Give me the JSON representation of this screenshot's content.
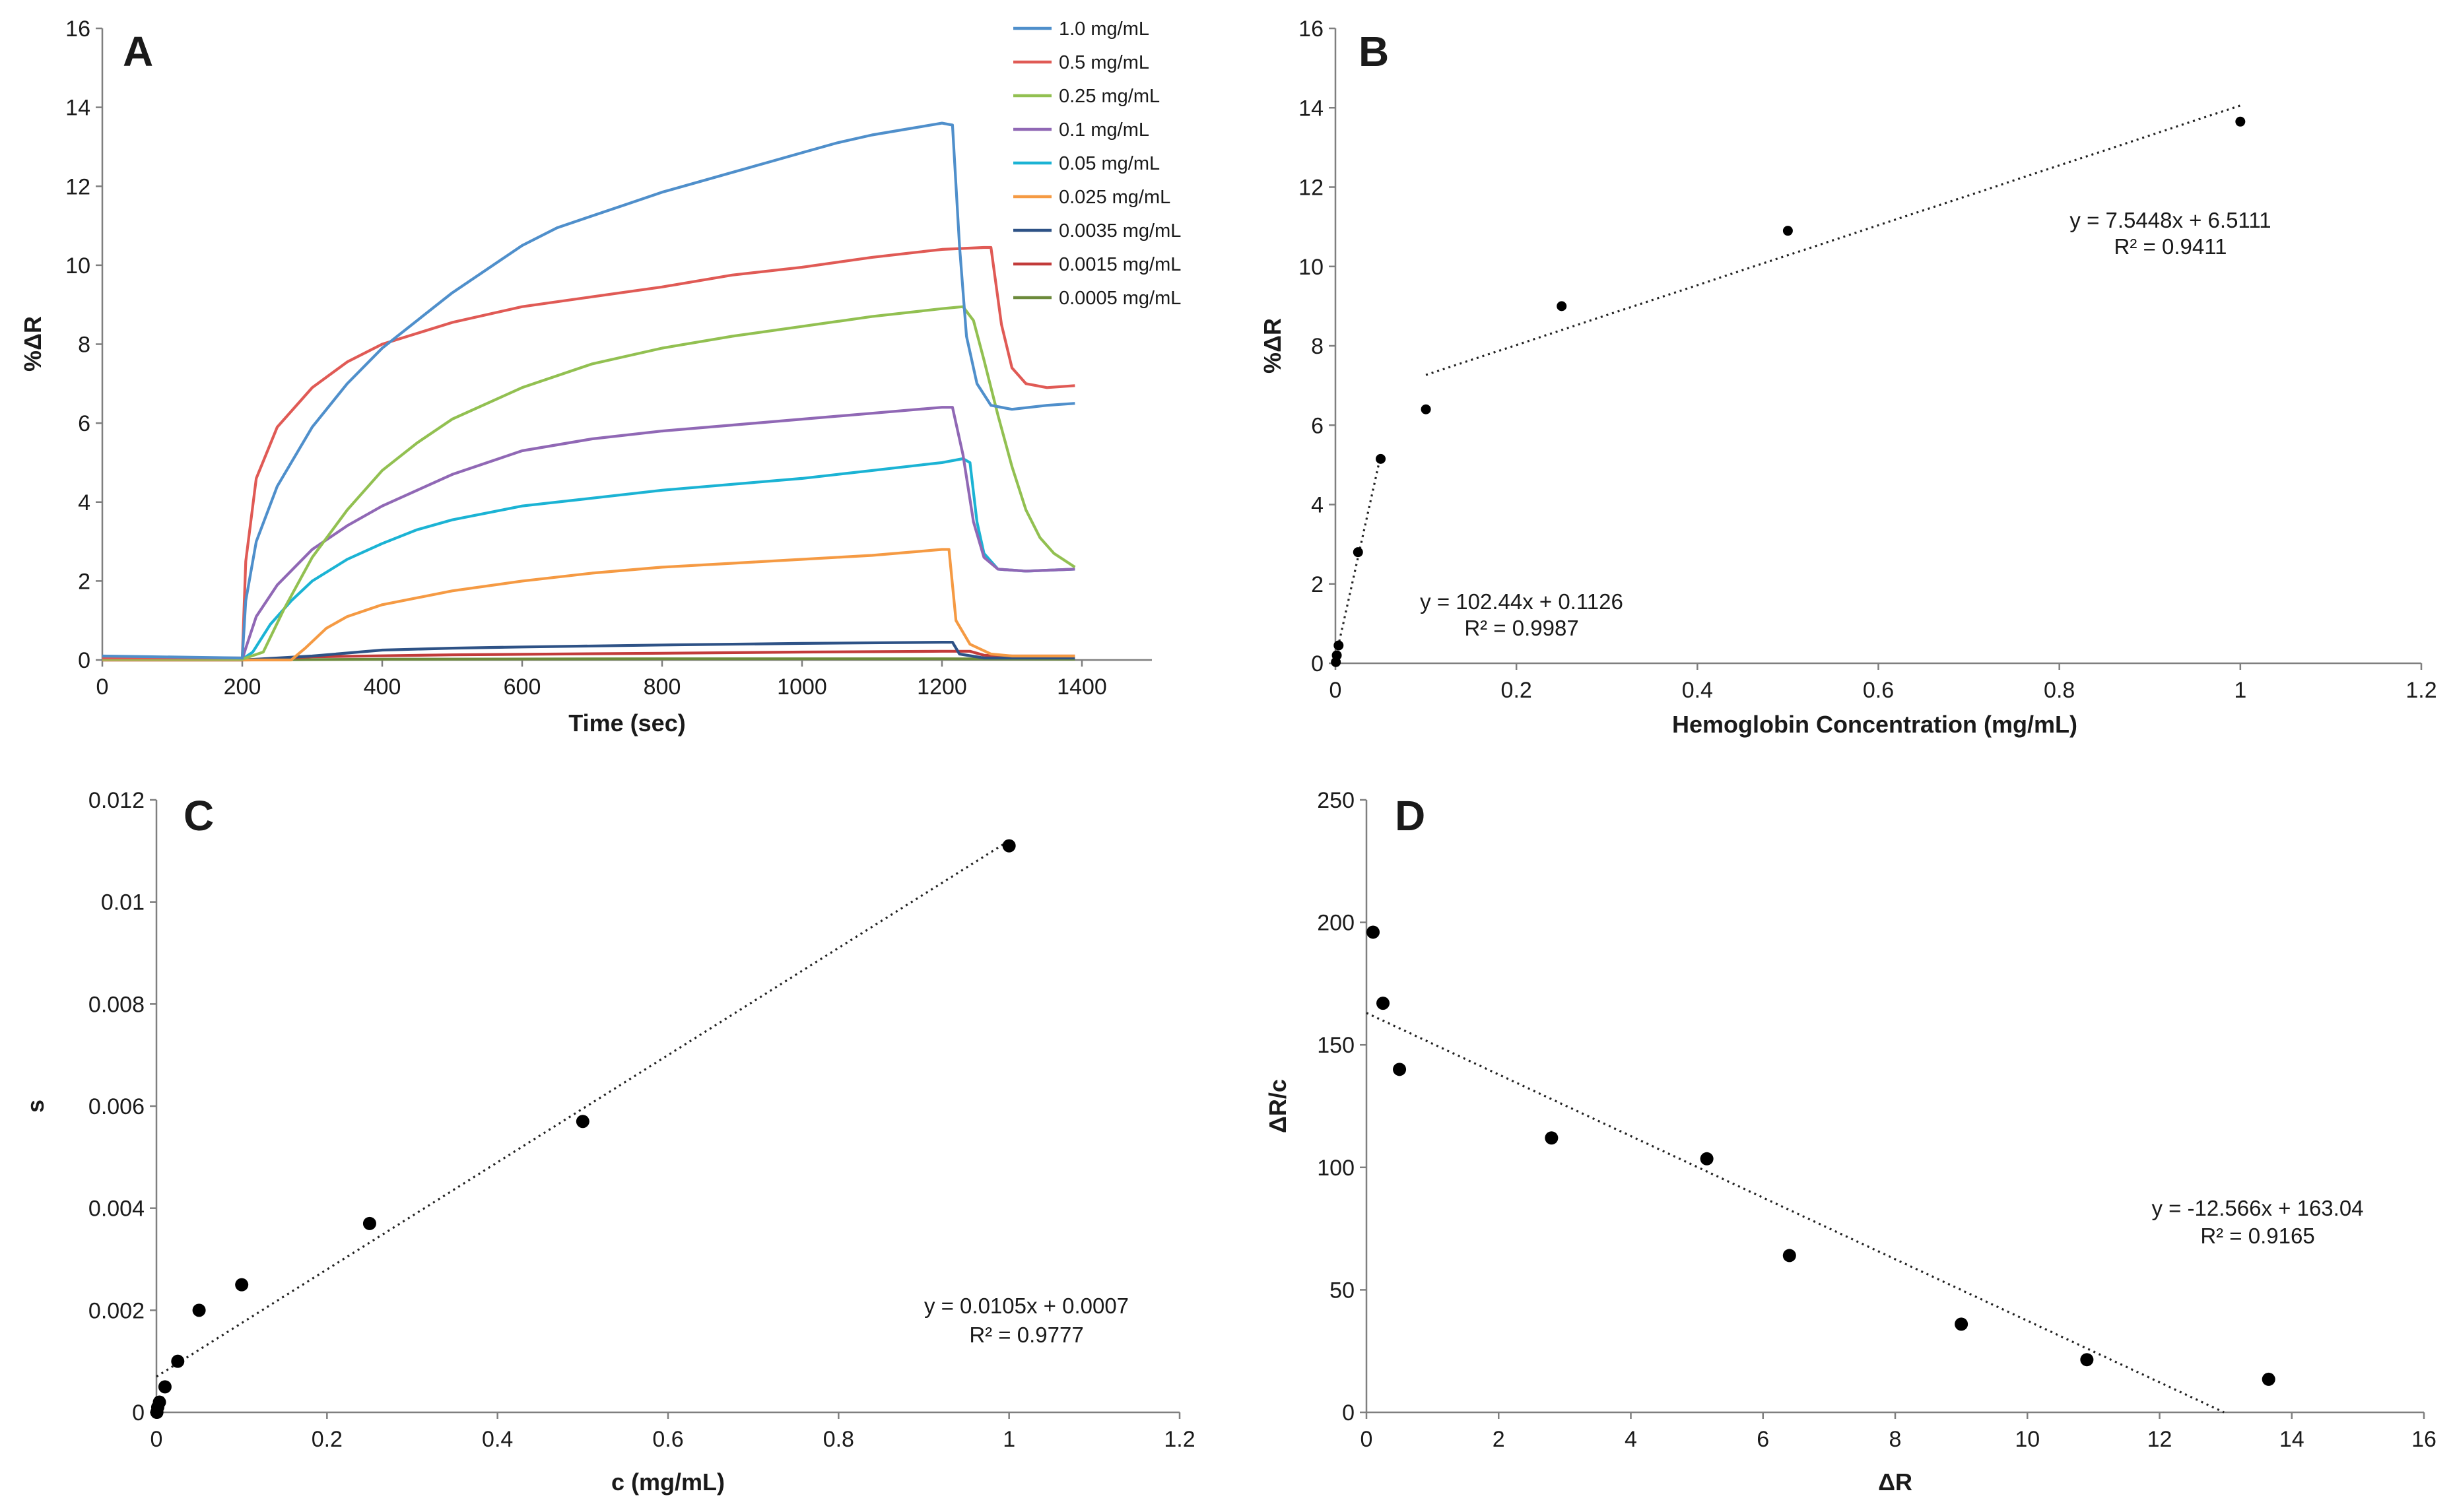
{
  "chart_data": [
    {
      "id": "A",
      "type": "line",
      "panel_letter": "A",
      "xlabel": "Time (sec)",
      "ylabel": "%ΔR",
      "xlim": [
        0,
        1500
      ],
      "ylim": [
        0,
        16
      ],
      "xticks": [
        0,
        200,
        400,
        600,
        800,
        1000,
        1200,
        1400
      ],
      "yticks": [
        0,
        2,
        4,
        6,
        8,
        10,
        12,
        14,
        16
      ],
      "legend_position": "top-right",
      "series": [
        {
          "name": "1.0 mg/mL",
          "color": "#4f8fcb",
          "points": [
            [
              0,
              0.1
            ],
            [
              200,
              0.05
            ],
            [
              205,
              1.5
            ],
            [
              220,
              3.0
            ],
            [
              250,
              4.4
            ],
            [
              300,
              5.9
            ],
            [
              350,
              7.0
            ],
            [
              400,
              7.9
            ],
            [
              450,
              8.6
            ],
            [
              500,
              9.3
            ],
            [
              550,
              9.9
            ],
            [
              600,
              10.5
            ],
            [
              650,
              10.95
            ],
            [
              700,
              11.25
            ],
            [
              750,
              11.55
            ],
            [
              800,
              11.85
            ],
            [
              850,
              12.1
            ],
            [
              900,
              12.35
            ],
            [
              950,
              12.6
            ],
            [
              1000,
              12.85
            ],
            [
              1050,
              13.1
            ],
            [
              1100,
              13.3
            ],
            [
              1150,
              13.45
            ],
            [
              1200,
              13.6
            ],
            [
              1215,
              13.55
            ],
            [
              1225,
              10.5
            ],
            [
              1235,
              8.2
            ],
            [
              1250,
              7.0
            ],
            [
              1270,
              6.45
            ],
            [
              1300,
              6.35
            ],
            [
              1350,
              6.45
            ],
            [
              1390,
              6.5
            ]
          ]
        },
        {
          "name": "0.5 mg/mL",
          "color": "#e05a55",
          "points": [
            [
              0,
              0.05
            ],
            [
              200,
              0.05
            ],
            [
              205,
              2.5
            ],
            [
              220,
              4.6
            ],
            [
              250,
              5.9
            ],
            [
              300,
              6.9
            ],
            [
              350,
              7.55
            ],
            [
              400,
              8.0
            ],
            [
              500,
              8.55
            ],
            [
              600,
              8.95
            ],
            [
              700,
              9.2
            ],
            [
              800,
              9.45
            ],
            [
              900,
              9.75
            ],
            [
              1000,
              9.95
            ],
            [
              1100,
              10.2
            ],
            [
              1200,
              10.4
            ],
            [
              1260,
              10.45
            ],
            [
              1270,
              10.45
            ],
            [
              1285,
              8.5
            ],
            [
              1300,
              7.4
            ],
            [
              1320,
              7.0
            ],
            [
              1350,
              6.9
            ],
            [
              1390,
              6.95
            ]
          ]
        },
        {
          "name": "0.25 mg/mL",
          "color": "#92c051",
          "points": [
            [
              0,
              0.02
            ],
            [
              200,
              0.02
            ],
            [
              230,
              0.2
            ],
            [
              260,
              1.3
            ],
            [
              300,
              2.6
            ],
            [
              350,
              3.8
            ],
            [
              400,
              4.8
            ],
            [
              450,
              5.5
            ],
            [
              500,
              6.1
            ],
            [
              600,
              6.9
            ],
            [
              700,
              7.5
            ],
            [
              800,
              7.9
            ],
            [
              900,
              8.2
            ],
            [
              1000,
              8.45
            ],
            [
              1100,
              8.7
            ],
            [
              1200,
              8.9
            ],
            [
              1230,
              8.95
            ],
            [
              1245,
              8.6
            ],
            [
              1260,
              7.6
            ],
            [
              1280,
              6.2
            ],
            [
              1300,
              4.9
            ],
            [
              1320,
              3.8
            ],
            [
              1340,
              3.1
            ],
            [
              1360,
              2.7
            ],
            [
              1390,
              2.35
            ]
          ]
        },
        {
          "name": "0.1 mg/mL",
          "color": "#9068b5",
          "points": [
            [
              0,
              0.02
            ],
            [
              200,
              0.02
            ],
            [
              205,
              0.3
            ],
            [
              220,
              1.1
            ],
            [
              250,
              1.9
            ],
            [
              300,
              2.8
            ],
            [
              350,
              3.4
            ],
            [
              400,
              3.9
            ],
            [
              450,
              4.3
            ],
            [
              500,
              4.7
            ],
            [
              600,
              5.3
            ],
            [
              700,
              5.6
            ],
            [
              800,
              5.8
            ],
            [
              900,
              5.95
            ],
            [
              1000,
              6.1
            ],
            [
              1100,
              6.25
            ],
            [
              1200,
              6.4
            ],
            [
              1215,
              6.4
            ],
            [
              1230,
              5.2
            ],
            [
              1245,
              3.5
            ],
            [
              1260,
              2.6
            ],
            [
              1280,
              2.3
            ],
            [
              1320,
              2.25
            ],
            [
              1390,
              2.3
            ]
          ]
        },
        {
          "name": "0.05 mg/mL",
          "color": "#1bb3d4",
          "points": [
            [
              0,
              0.02
            ],
            [
              200,
              0.02
            ],
            [
              215,
              0.2
            ],
            [
              240,
              0.9
            ],
            [
              270,
              1.5
            ],
            [
              300,
              2.0
            ],
            [
              350,
              2.55
            ],
            [
              400,
              2.95
            ],
            [
              450,
              3.3
            ],
            [
              500,
              3.55
            ],
            [
              600,
              3.9
            ],
            [
              700,
              4.1
            ],
            [
              800,
              4.3
            ],
            [
              900,
              4.45
            ],
            [
              1000,
              4.6
            ],
            [
              1100,
              4.8
            ],
            [
              1200,
              5.0
            ],
            [
              1230,
              5.1
            ],
            [
              1240,
              5.0
            ],
            [
              1250,
              3.5
            ],
            [
              1260,
              2.7
            ],
            [
              1280,
              2.3
            ],
            [
              1320,
              2.25
            ],
            [
              1390,
              2.3
            ]
          ]
        },
        {
          "name": "0.025 mg/mL",
          "color": "#f59a43",
          "points": [
            [
              0,
              0.0
            ],
            [
              270,
              0.0
            ],
            [
              290,
              0.3
            ],
            [
              320,
              0.8
            ],
            [
              350,
              1.1
            ],
            [
              400,
              1.4
            ],
            [
              500,
              1.75
            ],
            [
              600,
              2.0
            ],
            [
              700,
              2.2
            ],
            [
              800,
              2.35
            ],
            [
              900,
              2.45
            ],
            [
              1000,
              2.55
            ],
            [
              1100,
              2.65
            ],
            [
              1200,
              2.8
            ],
            [
              1210,
              2.8
            ],
            [
              1220,
              1.0
            ],
            [
              1240,
              0.4
            ],
            [
              1270,
              0.15
            ],
            [
              1300,
              0.1
            ],
            [
              1390,
              0.1
            ]
          ]
        },
        {
          "name": "0.0035 mg/mL",
          "color": "#2e5286",
          "points": [
            [
              0,
              0.0
            ],
            [
              200,
              0.0
            ],
            [
              300,
              0.1
            ],
            [
              400,
              0.25
            ],
            [
              500,
              0.3
            ],
            [
              600,
              0.33
            ],
            [
              800,
              0.38
            ],
            [
              1000,
              0.42
            ],
            [
              1200,
              0.45
            ],
            [
              1215,
              0.45
            ],
            [
              1225,
              0.15
            ],
            [
              1260,
              0.05
            ],
            [
              1390,
              0.05
            ]
          ]
        },
        {
          "name": "0.0015 mg/mL",
          "color": "#c23b3a",
          "points": [
            [
              0,
              0.0
            ],
            [
              200,
              0.0
            ],
            [
              300,
              0.08
            ],
            [
              500,
              0.13
            ],
            [
              800,
              0.17
            ],
            [
              1000,
              0.2
            ],
            [
              1200,
              0.22
            ],
            [
              1240,
              0.22
            ],
            [
              1260,
              0.12
            ],
            [
              1300,
              0.1
            ],
            [
              1390,
              0.1
            ]
          ]
        },
        {
          "name": "0.0005 mg/mL",
          "color": "#6c8a3b",
          "points": [
            [
              0,
              0.0
            ],
            [
              200,
              0.0
            ],
            [
              400,
              0.02
            ],
            [
              800,
              0.03
            ],
            [
              1200,
              0.03
            ],
            [
              1390,
              0.02
            ]
          ]
        }
      ]
    },
    {
      "id": "B",
      "type": "scatter",
      "panel_letter": "B",
      "xlabel": "Hemoglobin Concentration (mg/mL)",
      "ylabel": "%ΔR",
      "xlim": [
        0,
        1.2
      ],
      "ylim": [
        0,
        16
      ],
      "xticks": [
        0,
        0.2,
        0.4,
        0.6,
        0.8,
        1.0,
        1.2
      ],
      "xtick_labels": [
        "0",
        "0.2",
        "0.4",
        "0.6",
        "0.8",
        "1",
        "1.2"
      ],
      "yticks": [
        0,
        2,
        4,
        6,
        8,
        10,
        12,
        14,
        16
      ],
      "points": [
        [
          0.0005,
          0.03
        ],
        [
          0.0015,
          0.2
        ],
        [
          0.0035,
          0.45
        ],
        [
          0.025,
          2.8
        ],
        [
          0.05,
          5.15
        ],
        [
          0.1,
          6.4
        ],
        [
          0.25,
          9.0
        ],
        [
          0.5,
          10.9
        ],
        [
          1.0,
          13.65
        ]
      ],
      "trendlines": [
        {
          "x": [
            0.1,
            1.0
          ],
          "y": [
            7.266,
            14.056
          ]
        },
        {
          "x": [
            0.0,
            0.05
          ],
          "y": [
            0.113,
            5.235
          ]
        }
      ],
      "annotations": {
        "eq1": "y = 7.5448x + 6.5111",
        "r1": "R² = 0.9411",
        "eq2": "y = 102.44x + 0.1126",
        "r2": "R² = 0.9987"
      }
    },
    {
      "id": "C",
      "type": "scatter",
      "panel_letter": "C",
      "xlabel": "c (mg/mL)",
      "ylabel": "s",
      "xlim": [
        0,
        1.2
      ],
      "ylim": [
        0,
        0.012
      ],
      "xticks": [
        0,
        0.2,
        0.4,
        0.6,
        0.8,
        1.0,
        1.2
      ],
      "xtick_labels": [
        "0",
        "0.2",
        "0.4",
        "0.6",
        "0.8",
        "1",
        "1.2"
      ],
      "yticks": [
        0,
        0.002,
        0.004,
        0.006,
        0.008,
        0.01,
        0.012
      ],
      "ytick_labels": [
        "0",
        "0.002",
        "0.004",
        "0.006",
        "0.008",
        "0.01",
        "0.012"
      ],
      "points": [
        [
          0.0005,
          0.0
        ],
        [
          0.0015,
          0.0001
        ],
        [
          0.0035,
          0.0002
        ],
        [
          0.01,
          0.0005
        ],
        [
          0.025,
          0.001
        ],
        [
          0.05,
          0.002
        ],
        [
          0.1,
          0.0025
        ],
        [
          0.25,
          0.0037
        ],
        [
          0.5,
          0.0057
        ],
        [
          1.0,
          0.0111
        ]
      ],
      "trendlines": [
        {
          "x": [
            0.0,
            1.0
          ],
          "y": [
            0.0007,
            0.0112
          ]
        }
      ],
      "annotations": {
        "eq1": "y = 0.0105x + 0.0007",
        "r1": "R² = 0.9777"
      }
    },
    {
      "id": "D",
      "type": "scatter",
      "panel_letter": "D",
      "xlabel": "ΔR",
      "ylabel": "ΔR/c",
      "xlim": [
        0,
        16
      ],
      "ylim": [
        0,
        250
      ],
      "xticks": [
        0,
        2,
        4,
        6,
        8,
        10,
        12,
        14,
        16
      ],
      "yticks": [
        0,
        50,
        100,
        150,
        200,
        250
      ],
      "points": [
        [
          0.1,
          196
        ],
        [
          0.25,
          167
        ],
        [
          0.5,
          140
        ],
        [
          2.8,
          112
        ],
        [
          5.15,
          103.5
        ],
        [
          6.4,
          64
        ],
        [
          9.0,
          36
        ],
        [
          10.9,
          21.5
        ],
        [
          13.65,
          13.5
        ]
      ],
      "trendlines": [
        {
          "x": [
            0.0,
            12.975
          ],
          "y": [
            163.04,
            0.0
          ]
        }
      ],
      "annotations": {
        "eq1": "y = -12.566x + 163.04",
        "r1": "R² = 0.9165"
      }
    }
  ]
}
